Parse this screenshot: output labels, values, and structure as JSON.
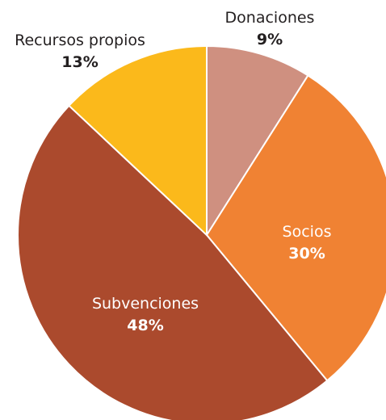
{
  "chart_data": {
    "type": "pie",
    "title": "",
    "start_angle": "12 o'clock",
    "direction": "clockwise",
    "slices": [
      {
        "label": "Donaciones",
        "value": 9,
        "display": "9%",
        "color": "#cf9080",
        "label_color": "#231f20",
        "label_position": "outside"
      },
      {
        "label": "Socios",
        "value": 30,
        "display": "30%",
        "color": "#f08233",
        "label_color": "#ffffff",
        "label_position": "inside"
      },
      {
        "label": "Subvenciones",
        "value": 48,
        "display": "48%",
        "color": "#ab4a2d",
        "label_color": "#ffffff",
        "label_position": "inside"
      },
      {
        "label": "Recursos propios",
        "value": 13,
        "display": "13%",
        "color": "#fbb91b",
        "label_color": "#231f20",
        "label_position": "outside"
      }
    ]
  }
}
